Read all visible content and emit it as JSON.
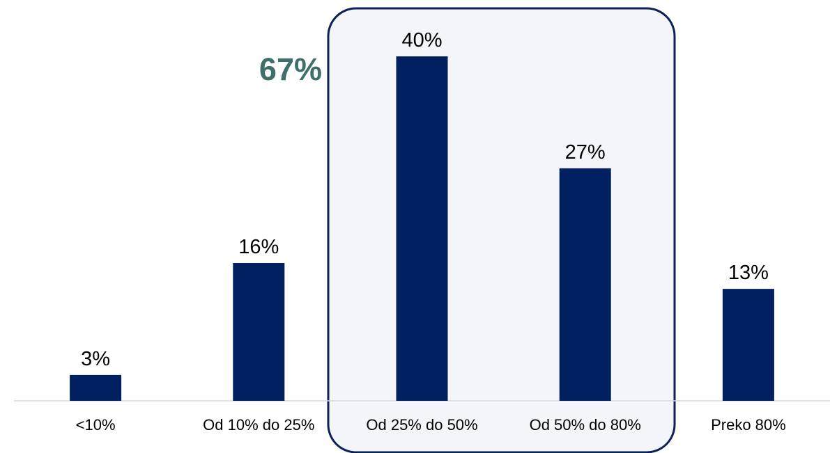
{
  "chart_data": {
    "type": "bar",
    "categories": [
      "<10%",
      "Od 10% do 25%",
      "Od 25% do 50%",
      "Od 50% do 80%",
      "Preko 80%"
    ],
    "values": [
      3,
      16,
      40,
      27,
      13
    ],
    "value_labels": [
      "3%",
      "16%",
      "40%",
      "27%",
      "13%"
    ],
    "ylim": [
      0,
      45
    ],
    "grid": false,
    "legend": "none",
    "bar_color": "#002060",
    "highlight": {
      "categories": [
        "Od 25% do 50%",
        "Od 50% do 80%"
      ],
      "label": "67%",
      "label_color": "#3f6f68",
      "box_fill": "#f3f5f9",
      "box_stroke": "#0d2158"
    }
  }
}
